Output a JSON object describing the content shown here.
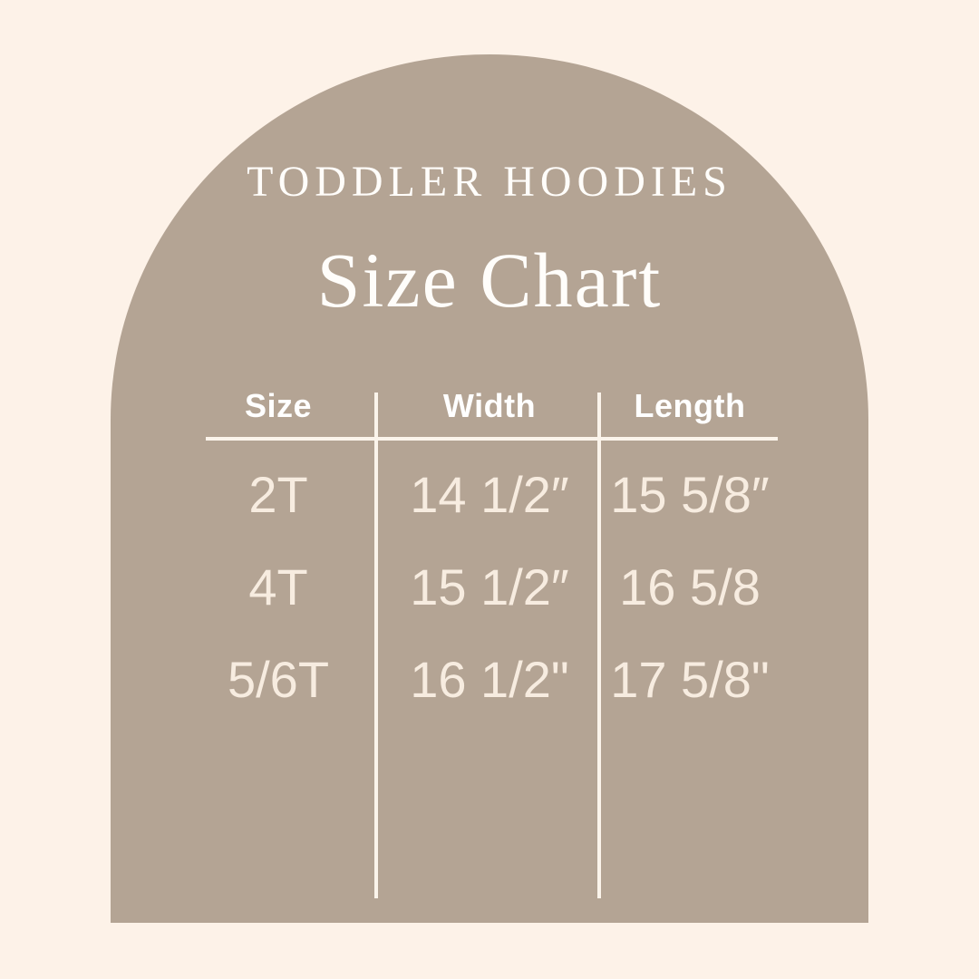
{
  "page": {
    "background_color": "#FDF2E8",
    "arch_color": "#B4A494",
    "line_color": "#FBF4EB",
    "title_color": "#FFFDFA",
    "cell_text_color": "#F7ECE0"
  },
  "header": {
    "eyebrow": "TODDLER HOODIES",
    "title": "Size Chart"
  },
  "chart_data": {
    "type": "table",
    "title": "Size Chart",
    "subtitle": "TODDLER HOODIES",
    "columns": [
      "Size",
      "Width",
      "Length"
    ],
    "rows": [
      [
        "2T",
        "14 1/2″",
        "15 5/8″"
      ],
      [
        "4T",
        "15 1/2″",
        "16 5/8"
      ],
      [
        "5/6T",
        "16 1/2\"",
        "17 5/8\""
      ]
    ],
    "layout": {
      "grid": "two vertical column dividers and one horizontal line under headers",
      "shape": "table inside a taupe arch on cream background"
    }
  }
}
